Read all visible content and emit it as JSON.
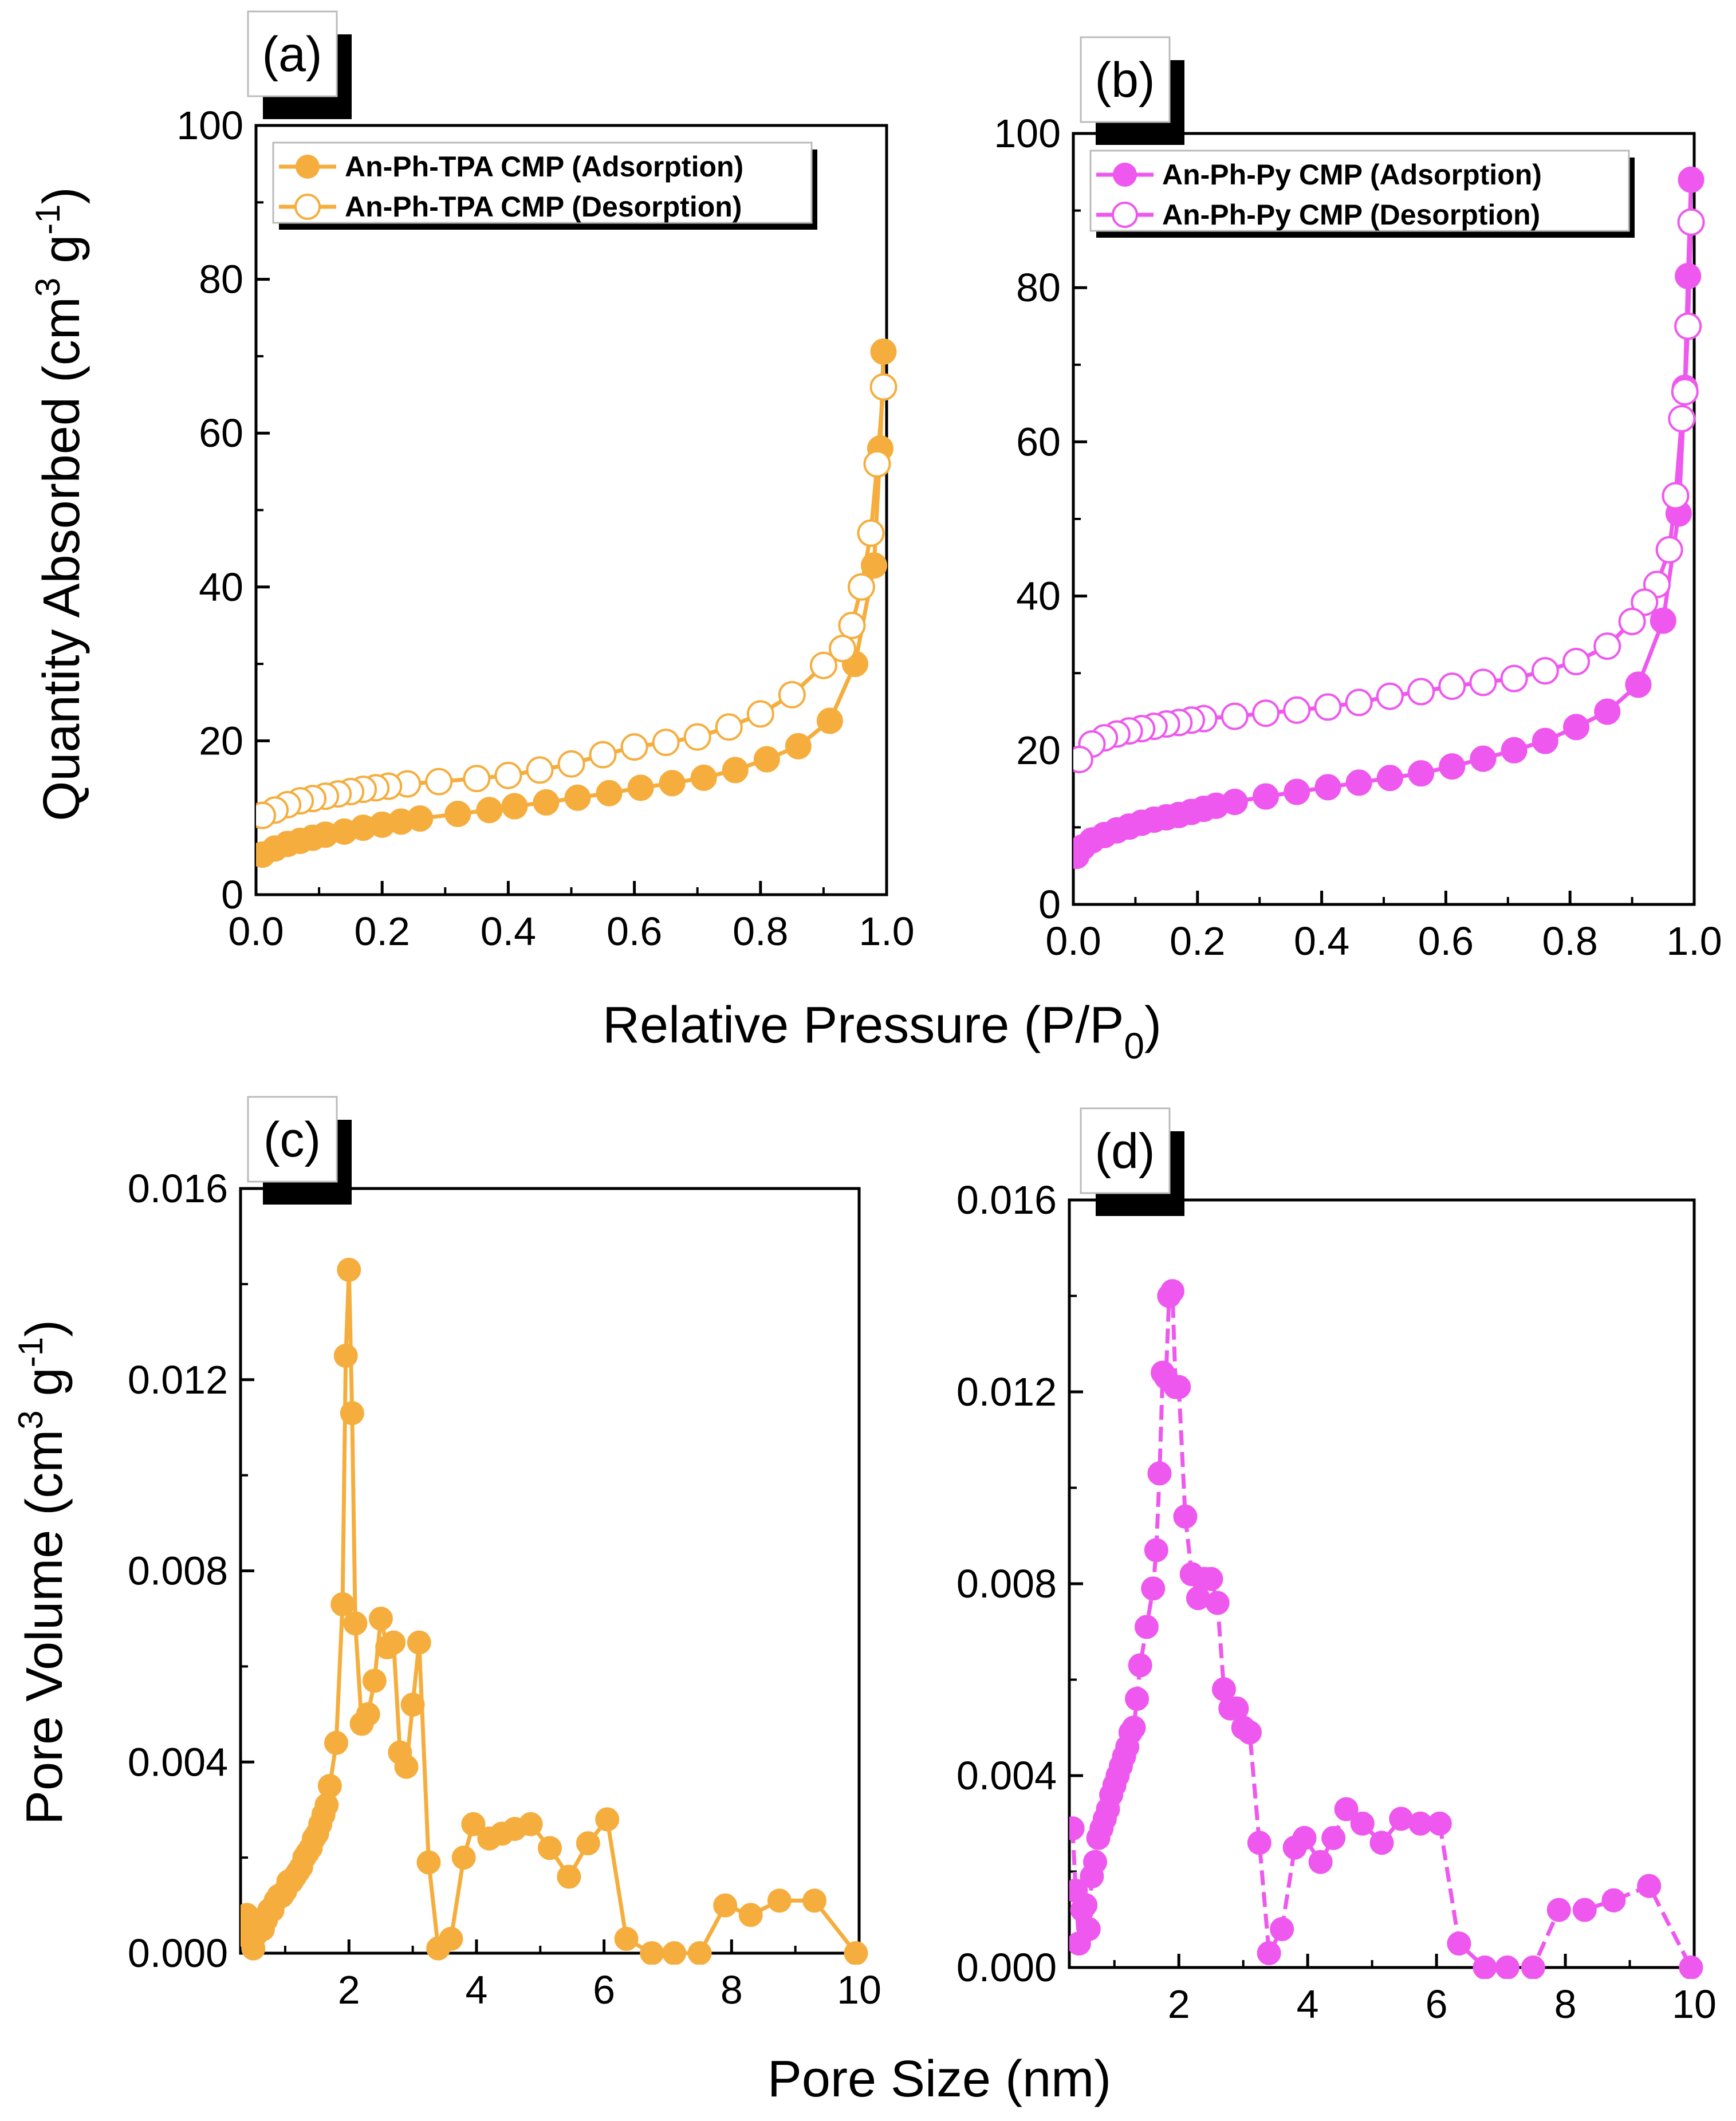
{
  "figure": {
    "shared_xlabel_top": "Relative Pressure (P/P",
    "shared_xlabel_top_sub": "0",
    "shared_xlabel_top_end": ")",
    "shared_xlabel_bottom": "Pore Size (nm)",
    "ylabel_top": "Quantity Absorbed (cm",
    "ylabel_bottom": "Pore Volume (cm",
    "ylabel_sup3": "3",
    "ylabel_mid": " g",
    "ylabel_sup_neg1": "-1",
    "ylabel_close": ")"
  },
  "colors": {
    "orange": "#F5AE3E",
    "magenta": "#EE58EE",
    "axis": "#000000"
  },
  "chart_data": [
    {
      "id": "a",
      "panel_label": "(a)",
      "type": "scatter",
      "color": "#F5AE3E",
      "xlim": [
        0,
        1.0
      ],
      "ylim": [
        0,
        100
      ],
      "xticks": [
        0.0,
        0.2,
        0.4,
        0.6,
        0.8,
        1.0
      ],
      "xtick_labels": [
        "0.0",
        "0.2",
        "0.4",
        "0.6",
        "0.8",
        "1.0"
      ],
      "yticks": [
        0,
        20,
        40,
        60,
        80,
        100
      ],
      "ytick_labels": [
        "0",
        "20",
        "40",
        "60",
        "80",
        "100"
      ],
      "legend_position": "top-left",
      "series": [
        {
          "name": "An-Ph-TPA CMP (Adsorption)",
          "marker": "filled-circle",
          "x": [
            0.01,
            0.03,
            0.05,
            0.07,
            0.09,
            0.11,
            0.14,
            0.17,
            0.2,
            0.23,
            0.26,
            0.32,
            0.37,
            0.41,
            0.46,
            0.51,
            0.56,
            0.61,
            0.66,
            0.71,
            0.76,
            0.81,
            0.86,
            0.91,
            0.95,
            0.98,
            0.99,
            0.995
          ],
          "y": [
            5.2,
            6.0,
            6.6,
            7.0,
            7.4,
            7.8,
            8.2,
            8.7,
            9.1,
            9.5,
            9.9,
            10.5,
            11.0,
            11.5,
            12.0,
            12.6,
            13.2,
            13.9,
            14.5,
            15.2,
            16.2,
            17.6,
            19.3,
            22.6,
            30.0,
            42.8,
            58.0,
            70.6
          ]
        },
        {
          "name": "An-Ph-TPA CMP (Desorption)",
          "marker": "open-circle",
          "x": [
            0.995,
            0.985,
            0.975,
            0.96,
            0.945,
            0.93,
            0.9,
            0.85,
            0.8,
            0.75,
            0.7,
            0.65,
            0.6,
            0.55,
            0.5,
            0.45,
            0.4,
            0.35,
            0.29,
            0.24,
            0.21,
            0.19,
            0.17,
            0.15,
            0.13,
            0.11,
            0.09,
            0.07,
            0.05,
            0.03,
            0.01
          ],
          "y": [
            66.0,
            56.0,
            47.0,
            40.0,
            35.0,
            32.0,
            29.8,
            26.0,
            23.5,
            21.8,
            20.5,
            19.8,
            19.2,
            18.2,
            17.0,
            16.2,
            15.5,
            15.1,
            14.7,
            14.4,
            14.1,
            13.9,
            13.7,
            13.4,
            13.1,
            12.8,
            12.5,
            12.2,
            11.7,
            11.0,
            10.3
          ]
        }
      ]
    },
    {
      "id": "b",
      "panel_label": "(b)",
      "type": "scatter",
      "color": "#EE58EE",
      "xlim": [
        0,
        1.0
      ],
      "ylim": [
        0,
        100
      ],
      "xticks": [
        0.0,
        0.2,
        0.4,
        0.6,
        0.8,
        1.0
      ],
      "xtick_labels": [
        "0.0",
        "0.2",
        "0.4",
        "0.6",
        "0.8",
        "1.0"
      ],
      "yticks": [
        0,
        20,
        40,
        60,
        80,
        100
      ],
      "ytick_labels": [
        "0",
        "20",
        "40",
        "60",
        "80",
        "100"
      ],
      "legend_position": "top-left",
      "series": [
        {
          "name": "An-Ph-Py CMP (Adsorption)",
          "marker": "filled-circle",
          "x": [
            0.005,
            0.015,
            0.03,
            0.05,
            0.07,
            0.09,
            0.11,
            0.13,
            0.15,
            0.17,
            0.19,
            0.21,
            0.23,
            0.26,
            0.31,
            0.36,
            0.41,
            0.46,
            0.51,
            0.56,
            0.61,
            0.66,
            0.71,
            0.76,
            0.81,
            0.86,
            0.91,
            0.95,
            0.975,
            0.985,
            0.99,
            0.995
          ],
          "y": [
            6.3,
            7.4,
            8.3,
            9.0,
            9.6,
            10.1,
            10.6,
            11.0,
            11.3,
            11.6,
            12.0,
            12.4,
            12.8,
            13.3,
            14.0,
            14.6,
            15.2,
            15.8,
            16.4,
            17.0,
            17.9,
            18.9,
            20.0,
            21.2,
            23.0,
            25.0,
            28.5,
            36.8,
            50.7,
            67.0,
            81.5,
            94.0
          ]
        },
        {
          "name": "An-Ph-Py CMP (Desorption)",
          "marker": "open-circle",
          "x": [
            0.995,
            0.99,
            0.985,
            0.98,
            0.97,
            0.96,
            0.94,
            0.92,
            0.9,
            0.86,
            0.81,
            0.76,
            0.71,
            0.66,
            0.61,
            0.56,
            0.51,
            0.46,
            0.41,
            0.36,
            0.31,
            0.26,
            0.21,
            0.19,
            0.17,
            0.15,
            0.13,
            0.11,
            0.09,
            0.07,
            0.05,
            0.03,
            0.01
          ],
          "y": [
            88.5,
            75.0,
            66.5,
            63.0,
            53.0,
            46.0,
            41.5,
            39.2,
            36.7,
            33.5,
            31.5,
            30.3,
            29.3,
            28.8,
            28.3,
            27.6,
            27.0,
            26.2,
            25.6,
            25.2,
            24.8,
            24.4,
            24.1,
            23.9,
            23.6,
            23.4,
            23.1,
            22.8,
            22.5,
            22.1,
            21.6,
            20.8,
            18.8
          ]
        }
      ]
    },
    {
      "id": "c",
      "panel_label": "(c)",
      "type": "line",
      "color": "#F5AE3E",
      "xlim": [
        0.3,
        10
      ],
      "ylim": [
        0,
        0.016
      ],
      "xticks": [
        2,
        4,
        6,
        8,
        10
      ],
      "xtick_labels": [
        "2",
        "4",
        "6",
        "8",
        "10"
      ],
      "yticks": [
        0,
        0.004,
        0.008,
        0.012,
        0.016
      ],
      "ytick_labels": [
        "0.000",
        "0.004",
        "0.008",
        "0.012",
        "0.016"
      ],
      "series": [
        {
          "marker": "filled-circle",
          "x": [
            0.35,
            0.4,
            0.45,
            0.5,
            0.55,
            0.6,
            0.65,
            0.7,
            0.75,
            0.8,
            0.85,
            0.9,
            0.95,
            1.0,
            1.05,
            1.1,
            1.15,
            1.2,
            1.25,
            1.3,
            1.35,
            1.4,
            1.45,
            1.5,
            1.55,
            1.6,
            1.65,
            1.7,
            1.8,
            1.9,
            1.95,
            2.0,
            2.05,
            2.1,
            2.2,
            2.3,
            2.4,
            2.5,
            2.6,
            2.7,
            2.8,
            2.9,
            3.0,
            3.1,
            3.25,
            3.4,
            3.6,
            3.8,
            3.95,
            4.2,
            4.4,
            4.6,
            4.85,
            5.15,
            5.45,
            5.75,
            6.05,
            6.35,
            6.75,
            7.1,
            7.5,
            7.9,
            8.3,
            8.75,
            9.3,
            9.95
          ],
          "y": [
            0.0005,
            0.0008,
            0.0003,
            0.0001,
            0.0004,
            0.0006,
            0.0005,
            0.0007,
            0.0009,
            0.0009,
            0.0011,
            0.0012,
            0.0012,
            0.0013,
            0.0015,
            0.0015,
            0.0016,
            0.0017,
            0.0018,
            0.002,
            0.0021,
            0.0022,
            0.0024,
            0.0025,
            0.0027,
            0.0029,
            0.0031,
            0.0035,
            0.0044,
            0.0073,
            0.0125,
            0.0143,
            0.0113,
            0.0069,
            0.0048,
            0.005,
            0.0057,
            0.007,
            0.0064,
            0.0065,
            0.0042,
            0.0039,
            0.0052,
            0.0065,
            0.0019,
            0.0001,
            0.0003,
            0.002,
            0.0027,
            0.0024,
            0.0025,
            0.0026,
            0.0027,
            0.0022,
            0.0016,
            0.0023,
            0.0028,
            0.0003,
            0.0,
            0.0,
            0.0,
            0.001,
            0.0008,
            0.0011,
            0.0011,
            0.0
          ]
        }
      ]
    },
    {
      "id": "d",
      "panel_label": "(d)",
      "type": "line",
      "color": "#EE58EE",
      "xlim": [
        0.3,
        10
      ],
      "ylim": [
        0,
        0.016
      ],
      "xticks": [
        2,
        4,
        6,
        8,
        10
      ],
      "xtick_labels": [
        "2",
        "4",
        "6",
        "8",
        "10"
      ],
      "yticks": [
        0,
        0.004,
        0.008,
        0.012,
        0.016
      ],
      "ytick_labels": [
        "0.000",
        "0.004",
        "0.008",
        "0.012",
        "0.016"
      ],
      "series": [
        {
          "marker": "filled-circle",
          "x": [
            0.35,
            0.4,
            0.45,
            0.5,
            0.55,
            0.6,
            0.65,
            0.7,
            0.75,
            0.8,
            0.85,
            0.9,
            0.95,
            1.0,
            1.05,
            1.1,
            1.15,
            1.2,
            1.25,
            1.3,
            1.35,
            1.4,
            1.5,
            1.6,
            1.65,
            1.7,
            1.75,
            1.8,
            1.85,
            1.9,
            1.95,
            2.0,
            2.1,
            2.2,
            2.3,
            2.4,
            2.5,
            2.6,
            2.7,
            2.8,
            2.9,
            3.0,
            3.1,
            3.25,
            3.4,
            3.6,
            3.8,
            3.95,
            4.2,
            4.4,
            4.6,
            4.85,
            5.15,
            5.45,
            5.75,
            6.05,
            6.35,
            6.75,
            7.1,
            7.5,
            7.9,
            8.3,
            8.75,
            9.3,
            9.95
          ],
          "y": [
            0.0029,
            0.0016,
            0.0005,
            0.0012,
            0.0013,
            0.0008,
            0.0019,
            0.0022,
            0.0027,
            0.0029,
            0.0031,
            0.0033,
            0.0036,
            0.0038,
            0.004,
            0.0042,
            0.0044,
            0.0046,
            0.0049,
            0.005,
            0.0056,
            0.0063,
            0.0071,
            0.0079,
            0.0087,
            0.0103,
            0.0124,
            0.0123,
            0.014,
            0.0141,
            0.0121,
            0.0121,
            0.0094,
            0.0082,
            0.0077,
            0.0081,
            0.0081,
            0.0076,
            0.0058,
            0.0054,
            0.0054,
            0.005,
            0.0049,
            0.0026,
            0.0003,
            0.0008,
            0.0025,
            0.0027,
            0.0022,
            0.0027,
            0.0033,
            0.003,
            0.0026,
            0.0031,
            0.003,
            0.003,
            0.0005,
            0.0,
            0.0,
            0.0,
            0.0012,
            0.0012,
            0.0014,
            0.0017,
            0.0
          ]
        }
      ]
    }
  ]
}
